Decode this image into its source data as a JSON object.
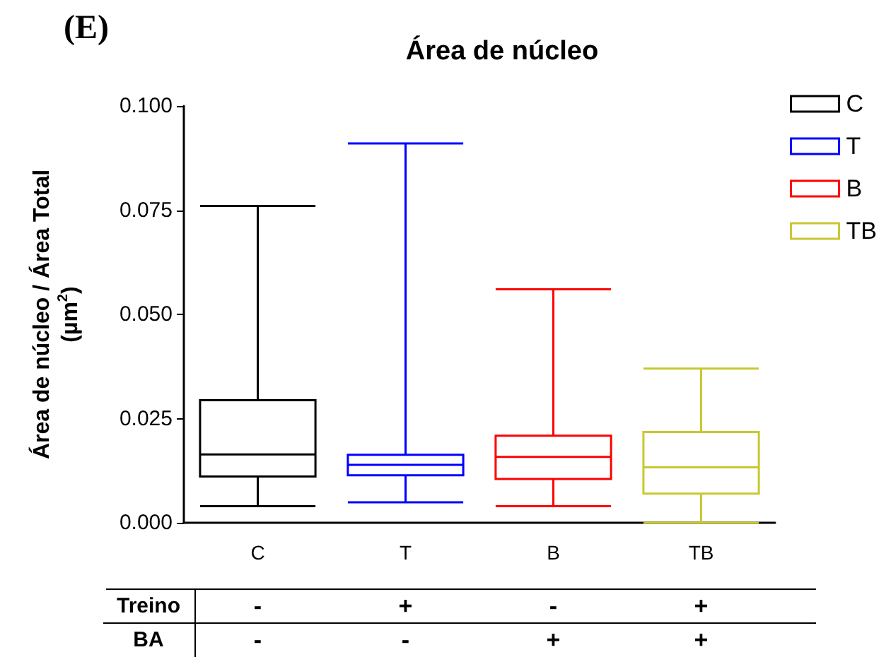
{
  "chart_data": {
    "type": "box",
    "title": "Área de núcleo",
    "ylabel": "Área de núcleo / Área Total\n(µm$^{2}$)",
    "categories": [
      "C",
      "T",
      "B",
      "TB"
    ],
    "series": [
      {
        "name": "C",
        "color": "#000000",
        "boxes": [
          {
            "low": 0.004,
            "q1": 0.0111,
            "median": 0.0164,
            "q3": 0.0294,
            "high": 0.076
          },
          null,
          null,
          null
        ]
      },
      {
        "name": "T",
        "color": "#0000ff",
        "boxes": [
          null,
          {
            "low": 0.0049,
            "q1": 0.0114,
            "median": 0.0139,
            "q3": 0.0163,
            "high": 0.091
          },
          null,
          null
        ]
      },
      {
        "name": "B",
        "color": "#ff0000",
        "boxes": [
          null,
          null,
          {
            "low": 0.004,
            "q1": 0.0105,
            "median": 0.0158,
            "q3": 0.0209,
            "high": 0.056
          },
          null
        ]
      },
      {
        "name": "TB",
        "color": "#c8c832",
        "boxes": [
          null,
          null,
          null,
          {
            "low": 0.0,
            "q1": 0.007,
            "median": 0.0133,
            "q3": 0.0218,
            "high": 0.037
          }
        ]
      }
    ],
    "ylim": [
      0,
      0.1
    ],
    "yticks": [
      {
        "value": 0,
        "label": "0.000"
      },
      {
        "value": 0.025,
        "label": "0.025"
      },
      {
        "value": 0.05,
        "label": "0.050"
      },
      {
        "value": 0.075,
        "label": "0.075"
      },
      {
        "value": 0.1,
        "label": "0.100"
      }
    ],
    "legend": "top right",
    "grid": false,
    "annotations": [
      "(E)",
      "Treino",
      "-",
      "+",
      "-",
      "+",
      "BA",
      "-",
      "-",
      "+",
      "+"
    ]
  }
}
